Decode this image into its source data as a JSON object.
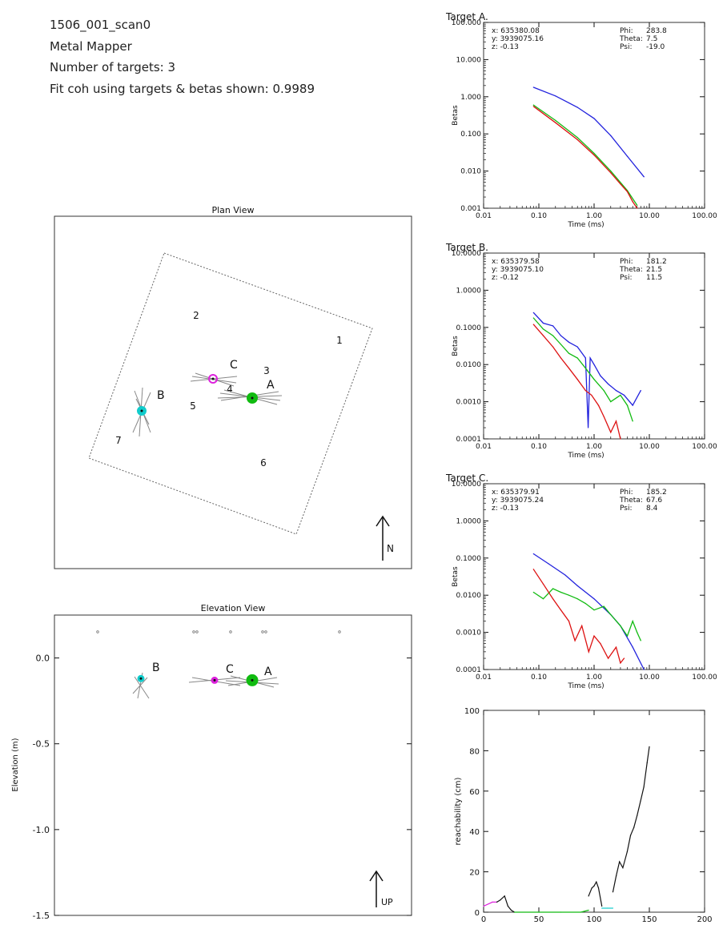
{
  "header": {
    "line1": "1506_001_scan0",
    "line2": "Metal Mapper",
    "line3": "Number of targets: 3",
    "line4": "Fit coh using targets & betas shown: 0.9989"
  },
  "colors": {
    "blue": "#2222dd",
    "red": "#dd1111",
    "green": "#11bb11",
    "cyan": "#11cccc",
    "magenta": "#dd22dd",
    "black": "#111111",
    "gray": "#777777"
  },
  "chart_data": [
    {
      "type": "scatter",
      "title": "Plan View",
      "north_label": "N",
      "footprint_labels": [
        "1",
        "2",
        "3",
        "4",
        "5",
        "6",
        "7"
      ],
      "targets": [
        {
          "label": "A",
          "color": "green"
        },
        {
          "label": "B",
          "color": "cyan"
        },
        {
          "label": "C",
          "color": "magenta"
        }
      ]
    },
    {
      "type": "scatter",
      "title": "Elevation View",
      "ylabel": "Elevation (m)",
      "ylim": [
        -1.5,
        0.25
      ],
      "yticks": [
        "0.0",
        "-0.5",
        "-1.0",
        "-1.5"
      ],
      "up_label": "UP",
      "targets": [
        {
          "label": "A",
          "elevation": -0.13,
          "color": "green"
        },
        {
          "label": "B",
          "elevation": -0.12,
          "color": "cyan"
        },
        {
          "label": "C",
          "elevation": -0.13,
          "color": "magenta"
        }
      ]
    },
    {
      "type": "line",
      "title": "Target A.",
      "xlabel": "Time (ms)",
      "ylabel": "Betas",
      "xscale": "log",
      "yscale": "log",
      "xlim": [
        0.01,
        100
      ],
      "ylim": [
        0.001,
        100
      ],
      "xticks": [
        "0.01",
        "0.10",
        "1.00",
        "10.00",
        "100.00"
      ],
      "yticks": [
        "0.001",
        "0.010",
        "0.100",
        "1.000",
        "10.000",
        "100.000"
      ],
      "info": {
        "x": "x: 635380.08",
        "y": "y: 3939075.16",
        "z": "z: -0.13",
        "phi_label": "Phi:",
        "phi": "283.8",
        "theta_label": "Theta:",
        "theta": "7.5",
        "psi_label": "Psi:",
        "psi": "-19.0"
      },
      "series": [
        {
          "color": "blue",
          "x": [
            0.08,
            0.2,
            0.5,
            1.0,
            2.0,
            4.0,
            8.0
          ],
          "y": [
            1.8,
            1.05,
            0.52,
            0.26,
            0.09,
            0.025,
            0.007
          ]
        },
        {
          "color": "green",
          "x": [
            0.08,
            0.2,
            0.5,
            1.0,
            2.0,
            4.0,
            6.0
          ],
          "y": [
            0.6,
            0.23,
            0.08,
            0.03,
            0.01,
            0.003,
            0.0012
          ]
        },
        {
          "color": "red",
          "x": [
            0.08,
            0.2,
            0.5,
            1.0,
            2.0,
            3.0,
            4.0,
            5.0,
            6.0
          ],
          "y": [
            0.55,
            0.2,
            0.07,
            0.027,
            0.009,
            0.0045,
            0.0028,
            0.0015,
            0.001
          ]
        }
      ]
    },
    {
      "type": "line",
      "title": "Target B.",
      "xlabel": "Time (ms)",
      "ylabel": "Betas",
      "xscale": "log",
      "yscale": "log",
      "xlim": [
        0.01,
        100
      ],
      "ylim": [
        0.0001,
        10
      ],
      "xticks": [
        "0.01",
        "0.10",
        "1.00",
        "10.00",
        "100.00"
      ],
      "yticks": [
        "0.0001",
        "0.0010",
        "0.0100",
        "0.1000",
        "1.0000",
        "10.0000"
      ],
      "info": {
        "x": "x: 635379.58",
        "y": "y: 3939075.10",
        "z": "z: -0.12",
        "phi_label": "Phi:",
        "phi": "181.2",
        "theta_label": "Theta:",
        "theta": "21.5",
        "psi_label": "Psi:",
        "psi": "11.5"
      },
      "series": [
        {
          "color": "blue",
          "x": [
            0.08,
            0.12,
            0.18,
            0.25,
            0.35,
            0.5,
            0.7,
            0.78,
            0.85,
            1.0,
            1.3,
            1.8,
            2.5,
            3.5,
            5.0,
            7.0
          ],
          "y": [
            0.25,
            0.13,
            0.11,
            0.06,
            0.04,
            0.03,
            0.015,
            0.0002,
            0.015,
            0.01,
            0.005,
            0.003,
            0.002,
            0.0015,
            0.0008,
            0.002
          ]
        },
        {
          "color": "green",
          "x": [
            0.08,
            0.12,
            0.18,
            0.25,
            0.35,
            0.5,
            0.7,
            1.0,
            1.5,
            2.0,
            3.0,
            4.0,
            5.0
          ],
          "y": [
            0.18,
            0.09,
            0.06,
            0.035,
            0.02,
            0.015,
            0.008,
            0.004,
            0.002,
            0.001,
            0.0015,
            0.0008,
            0.0003
          ]
        },
        {
          "color": "red",
          "x": [
            0.08,
            0.12,
            0.18,
            0.25,
            0.35,
            0.5,
            0.7,
            0.9,
            1.2,
            1.5,
            2.0,
            2.5,
            3.0
          ],
          "y": [
            0.12,
            0.06,
            0.03,
            0.015,
            0.008,
            0.004,
            0.002,
            0.0015,
            0.0008,
            0.0004,
            0.00015,
            0.0003,
            0.0001
          ]
        }
      ]
    },
    {
      "type": "line",
      "title": "Target C.",
      "xlabel": "Time (ms)",
      "ylabel": "Betas",
      "xscale": "log",
      "yscale": "log",
      "xlim": [
        0.01,
        100
      ],
      "ylim": [
        0.0001,
        10
      ],
      "xticks": [
        "0.01",
        "0.10",
        "1.00",
        "10.00",
        "100.00"
      ],
      "yticks": [
        "0.0001",
        "0.0010",
        "0.0100",
        "0.1000",
        "1.0000",
        "10.0000"
      ],
      "info": {
        "x": "x: 635379.91",
        "y": "y: 3939075.24",
        "z": "z: -0.13",
        "phi_label": "Phi:",
        "phi": "185.2",
        "theta_label": "Theta:",
        "theta": "67.6",
        "psi_label": "Psi:",
        "psi": "8.4"
      },
      "series": [
        {
          "color": "blue",
          "x": [
            0.08,
            0.15,
            0.3,
            0.5,
            1.0,
            2.0,
            3.0,
            5.0,
            8.0
          ],
          "y": [
            0.13,
            0.07,
            0.035,
            0.018,
            0.008,
            0.003,
            0.0015,
            0.0004,
            0.0001
          ]
        },
        {
          "color": "green",
          "x": [
            0.08,
            0.12,
            0.18,
            0.25,
            0.35,
            0.5,
            0.7,
            1.0,
            1.5,
            2.0,
            3.0,
            4.0,
            5.0,
            6.0,
            7.0
          ],
          "y": [
            0.012,
            0.008,
            0.015,
            0.012,
            0.01,
            0.008,
            0.006,
            0.004,
            0.005,
            0.003,
            0.0015,
            0.0008,
            0.002,
            0.001,
            0.0006
          ]
        },
        {
          "color": "red",
          "x": [
            0.08,
            0.12,
            0.18,
            0.25,
            0.35,
            0.45,
            0.6,
            0.8,
            1.0,
            1.3,
            1.8,
            2.5,
            3.0,
            3.5
          ],
          "y": [
            0.05,
            0.02,
            0.008,
            0.004,
            0.002,
            0.0006,
            0.0015,
            0.0003,
            0.0008,
            0.0005,
            0.0002,
            0.0004,
            0.00015,
            0.0002
          ]
        }
      ]
    },
    {
      "type": "line",
      "xlabel": "atom sequence",
      "ylabel": "reachability (cm)",
      "xlim": [
        0,
        200
      ],
      "ylim": [
        0,
        100
      ],
      "xticks": [
        "0",
        "50",
        "100",
        "150",
        "200"
      ],
      "yticks": [
        "0",
        "20",
        "40",
        "60",
        "80",
        "100"
      ],
      "series": [
        {
          "color": "magenta",
          "x": [
            0,
            4,
            8,
            12
          ],
          "y": [
            3,
            4,
            5,
            5
          ]
        },
        {
          "color": "black",
          "x": [
            12,
            15,
            19,
            22,
            25,
            28
          ],
          "y": [
            5,
            6,
            8,
            3,
            1,
            0
          ]
        },
        {
          "color": "green",
          "x": [
            28,
            50,
            70,
            88,
            95
          ],
          "y": [
            0,
            0,
            0,
            0,
            1
          ]
        },
        {
          "color": "black",
          "x": [
            95,
            98,
            100,
            102,
            104,
            107
          ],
          "y": [
            8,
            12,
            13,
            15,
            12,
            3
          ]
        },
        {
          "color": "cyan",
          "x": [
            107,
            112,
            117
          ],
          "y": [
            2,
            2,
            2
          ]
        },
        {
          "color": "black",
          "x": [
            117,
            120,
            123,
            126,
            130,
            133,
            136,
            139,
            142,
            145,
            148,
            150
          ],
          "y": [
            10,
            18,
            25,
            22,
            30,
            38,
            42,
            48,
            55,
            62,
            74,
            82
          ]
        }
      ]
    }
  ]
}
